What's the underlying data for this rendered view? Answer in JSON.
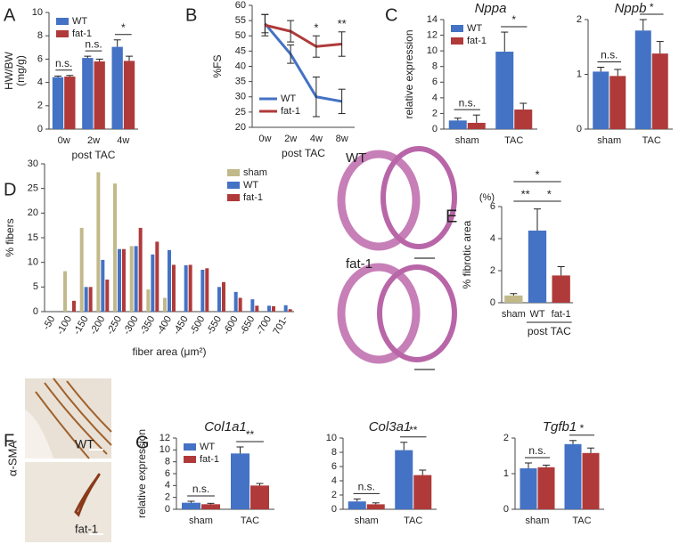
{
  "chart_data": [
    {
      "type": "bar",
      "panel": "A",
      "ylabel": [
        "HW/BW",
        "(mg/g)"
      ],
      "xlabel": "post TAC",
      "categories": [
        "0w",
        "2w",
        "4w"
      ],
      "series": [
        {
          "name": "WT",
          "color": "#4472c4",
          "values": [
            4.45,
            6.1,
            7.05
          ],
          "errors": [
            0.1,
            0.15,
            0.6
          ]
        },
        {
          "name": "fat-1",
          "color": "#b03a3a",
          "values": [
            4.5,
            5.8,
            5.85
          ],
          "errors": [
            0.1,
            0.2,
            0.4
          ]
        }
      ],
      "annotations": [
        "n.s.",
        "n.s.",
        "*"
      ],
      "ylim": [
        0,
        10
      ],
      "yticks": [
        0,
        2,
        4,
        6,
        8,
        10
      ],
      "legend": "upper left"
    },
    {
      "type": "line",
      "panel": "B",
      "ylabel": [
        "%FS"
      ],
      "xlabel": "post TAC",
      "categories": [
        "0w",
        "2w",
        "4w",
        "8w"
      ],
      "series": [
        {
          "name": "WT",
          "color": "#4472c4",
          "values": [
            54,
            44,
            30,
            28.5
          ],
          "errors": [
            3,
            3,
            6.5,
            4
          ]
        },
        {
          "name": "fat-1",
          "color": "#b03a3a",
          "values": [
            53.5,
            51.5,
            46.5,
            47.3
          ],
          "errors": [
            3.5,
            3.5,
            3.5,
            4
          ]
        }
      ],
      "annotations": [
        null,
        null,
        "*",
        "**"
      ],
      "ylim": [
        20,
        60
      ],
      "yticks": [
        20,
        25,
        30,
        35,
        40,
        45,
        50,
        55,
        60
      ],
      "legend": "lower left"
    },
    {
      "type": "bar",
      "panel": "C",
      "title": "Nppa",
      "ylabel": [
        "relative expression"
      ],
      "categories": [
        "sham",
        "TAC"
      ],
      "series": [
        {
          "name": "WT",
          "color": "#4472c4",
          "values": [
            1.1,
            9.9
          ],
          "errors": [
            0.3,
            2.5
          ]
        },
        {
          "name": "fat-1",
          "color": "#b03a3a",
          "values": [
            0.8,
            2.5
          ],
          "errors": [
            1.0,
            0.8
          ]
        }
      ],
      "annotations": [
        "n.s.",
        "*"
      ],
      "ylim": [
        0,
        14
      ],
      "yticks": [
        0,
        2,
        4,
        6,
        8,
        10,
        12,
        14
      ],
      "legend": "upper left"
    },
    {
      "type": "bar",
      "title": "Nppb",
      "categories": [
        "sham",
        "TAC"
      ],
      "series": [
        {
          "name": null,
          "color": "#4472c4",
          "values": [
            1.05,
            1.8
          ],
          "errors": [
            0.08,
            0.2
          ]
        },
        {
          "name": null,
          "color": "#b03a3a",
          "values": [
            0.97,
            1.38
          ],
          "errors": [
            0.12,
            0.22
          ]
        }
      ],
      "annotations": [
        "n.s.",
        "*"
      ],
      "ylim": [
        0,
        2
      ],
      "yticks": [
        0,
        1,
        2
      ]
    },
    {
      "type": "bar",
      "panel": "D",
      "ylabel": [
        "% fibers"
      ],
      "xlabel": "fiber area (μm²)",
      "categories": [
        "-50",
        "-100",
        "-150",
        "-200",
        "-250",
        "-300",
        "-350",
        "-400",
        "-450",
        "-500",
        "-550",
        "-600",
        "-650",
        "-700",
        "701-"
      ],
      "series": [
        {
          "name": "sham",
          "color": "#c2b98a",
          "values": [
            0,
            8.2,
            17,
            28.3,
            26,
            13.3,
            4.5,
            2.8,
            0,
            0,
            0,
            0,
            0,
            0,
            0
          ]
        },
        {
          "name": "WT",
          "color": "#4472c4",
          "values": [
            0,
            0,
            5,
            10.5,
            12.7,
            13.3,
            11.6,
            12.5,
            9.4,
            8.5,
            5,
            4,
            2.5,
            1.2,
            1.3
          ]
        },
        {
          "name": "fat-1",
          "color": "#b03a3a",
          "values": [
            0,
            2.2,
            5,
            6.5,
            12.7,
            17,
            14.2,
            9.5,
            9.5,
            8.8,
            6,
            2.8,
            1.2,
            1.1,
            0.5
          ]
        }
      ],
      "ylim": [
        0,
        30
      ],
      "yticks": [
        0,
        5,
        10,
        15,
        20,
        25,
        30
      ],
      "legend": "upper right"
    },
    {
      "type": "bar",
      "panel": "E",
      "ylabel": [
        "% fibrotic area"
      ],
      "yunit": "(%)",
      "xlabel": "post TAC",
      "categories": [
        "sham",
        "WT",
        "fat-1"
      ],
      "values": [
        0.45,
        4.5,
        1.7
      ],
      "errors": [
        0.12,
        1.35,
        0.55
      ],
      "colors": [
        "#c2b98a",
        "#4472c4",
        "#b03a3a"
      ],
      "annotations": [
        "**",
        "*",
        "*"
      ],
      "ylim": [
        0,
        6
      ],
      "yticks": [
        0,
        2,
        4,
        6
      ]
    },
    {
      "type": "bar",
      "panel": "G",
      "title": "Col1a1",
      "ylabel": [
        "relative expression"
      ],
      "categories": [
        "sham",
        "TAC"
      ],
      "series": [
        {
          "name": "WT",
          "color": "#4472c4",
          "values": [
            1.1,
            9.4
          ],
          "errors": [
            0.25,
            1.1
          ]
        },
        {
          "name": "fat-1",
          "color": "#b03a3a",
          "values": [
            0.85,
            4.0
          ],
          "errors": [
            0.15,
            0.35
          ]
        }
      ],
      "annotations": [
        "n.s.",
        "**"
      ],
      "ylim": [
        0,
        12
      ],
      "yticks": [
        0,
        2,
        4,
        6,
        8,
        10,
        12
      ],
      "legend": "upper left"
    },
    {
      "type": "bar",
      "title": "Col3a1",
      "categories": [
        "sham",
        "TAC"
      ],
      "series": [
        {
          "name": null,
          "color": "#4472c4",
          "values": [
            1.1,
            8.3
          ],
          "errors": [
            0.35,
            1.1
          ]
        },
        {
          "name": null,
          "color": "#b03a3a",
          "values": [
            0.7,
            4.8
          ],
          "errors": [
            0.2,
            0.7
          ]
        }
      ],
      "annotations": [
        "n.s.",
        "**"
      ],
      "ylim": [
        0,
        10
      ],
      "yticks": [
        0,
        2,
        4,
        6,
        8,
        10
      ]
    },
    {
      "type": "bar",
      "title": "Tgfb1",
      "categories": [
        "sham",
        "TAC"
      ],
      "series": [
        {
          "name": null,
          "color": "#4472c4",
          "values": [
            1.15,
            1.83
          ],
          "errors": [
            0.15,
            0.1
          ]
        },
        {
          "name": null,
          "color": "#b03a3a",
          "values": [
            1.18,
            1.58
          ],
          "errors": [
            0.06,
            0.14
          ]
        }
      ],
      "annotations": [
        "n.s.",
        "*"
      ],
      "ylim": [
        0,
        2
      ],
      "yticks": [
        0,
        1,
        2
      ]
    }
  ],
  "micrographs": {
    "E": [
      "WT",
      "fat-1"
    ],
    "F": {
      "panel": "F",
      "stain": "α-SMA",
      "labels": [
        "WT",
        "fat-1"
      ]
    }
  }
}
